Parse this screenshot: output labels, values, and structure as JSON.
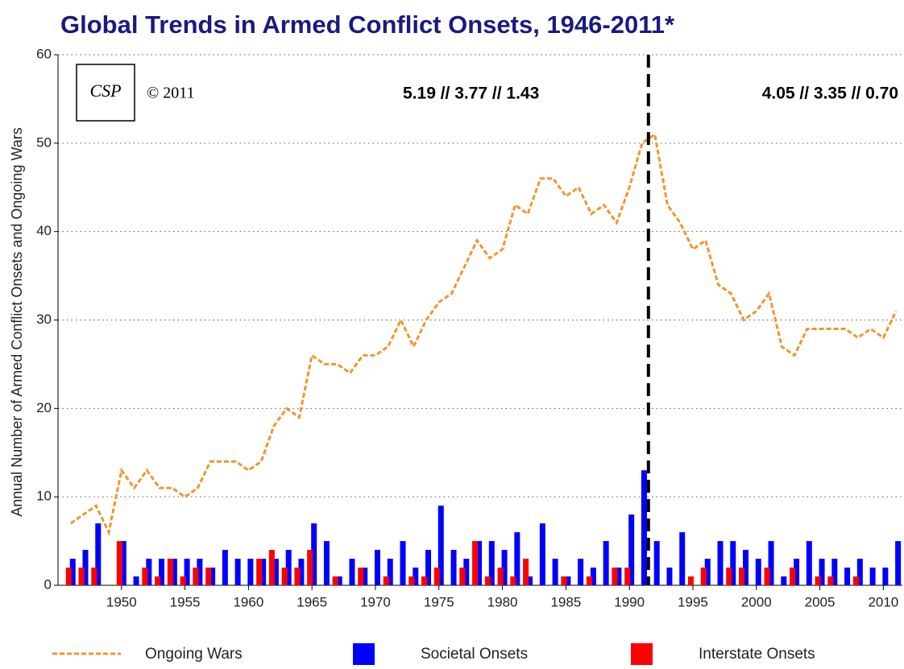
{
  "chart_data": {
    "type": "bar",
    "title": "Global Trends in Armed Conflict Onsets, 1946-2011*",
    "y_label": "Annual Number of Armed Conflict Onsets and Ongoing Wars",
    "logo": "CSP",
    "copyright": "© 2011",
    "annotations": [
      "5.19 // 3.77 // 1.43",
      "4.05 // 3.35 // 0.70"
    ],
    "reference_line": {
      "x": 1991.5
    },
    "x": [
      1946,
      1947,
      1948,
      1949,
      1950,
      1951,
      1952,
      1953,
      1954,
      1955,
      1956,
      1957,
      1958,
      1959,
      1960,
      1961,
      1962,
      1963,
      1964,
      1965,
      1966,
      1967,
      1968,
      1969,
      1970,
      1971,
      1972,
      1973,
      1974,
      1975,
      1976,
      1977,
      1978,
      1979,
      1980,
      1981,
      1982,
      1983,
      1984,
      1985,
      1986,
      1987,
      1988,
      1989,
      1990,
      1991,
      1992,
      1993,
      1994,
      1995,
      1996,
      1997,
      1998,
      1999,
      2000,
      2001,
      2002,
      2003,
      2004,
      2005,
      2006,
      2007,
      2008,
      2009,
      2010,
      2011
    ],
    "series": [
      {
        "name": "Ongoing Wars",
        "type": "line",
        "color": "#f0962d",
        "values": [
          7,
          8,
          9,
          6,
          13,
          11,
          13,
          11,
          11,
          10,
          11,
          14,
          14,
          14,
          13,
          14,
          18,
          20,
          19,
          26,
          25,
          25,
          24,
          26,
          26,
          27,
          30,
          27,
          30,
          32,
          33,
          36,
          39,
          37,
          38,
          43,
          42,
          46,
          46,
          44,
          45,
          42,
          43,
          41,
          45,
          50,
          51,
          43,
          41,
          38,
          39,
          34,
          33,
          30,
          31,
          33,
          27,
          26,
          29,
          29,
          29,
          29,
          28,
          29,
          28,
          31
        ]
      },
      {
        "name": "Societal Onsets",
        "type": "bar",
        "color": "#0000ff",
        "values": [
          3,
          4,
          7,
          0,
          5,
          1,
          3,
          3,
          3,
          3,
          3,
          2,
          4,
          3,
          3,
          3,
          3,
          4,
          3,
          7,
          5,
          1,
          3,
          2,
          4,
          3,
          5,
          2,
          4,
          9,
          4,
          3,
          5,
          5,
          4,
          6,
          1,
          7,
          3,
          1,
          3,
          2,
          5,
          2,
          8,
          13,
          5,
          2,
          6,
          0,
          3,
          5,
          5,
          4,
          3,
          5,
          1,
          3,
          5,
          3,
          3,
          2,
          3,
          2,
          2,
          5
        ]
      },
      {
        "name": "Interstate Onsets",
        "type": "bar",
        "color": "#ff0000",
        "values": [
          2,
          2,
          2,
          0,
          5,
          0,
          2,
          1,
          3,
          1,
          2,
          2,
          0,
          0,
          0,
          3,
          4,
          2,
          2,
          4,
          0,
          1,
          0,
          2,
          0,
          1,
          0,
          1,
          1,
          2,
          0,
          2,
          5,
          1,
          2,
          1,
          3,
          0,
          0,
          1,
          0,
          1,
          0,
          2,
          2,
          0,
          0,
          0,
          0,
          1,
          2,
          0,
          2,
          2,
          0,
          2,
          0,
          2,
          0,
          1,
          1,
          0,
          1,
          0,
          0,
          0
        ]
      }
    ],
    "xlim": [
      1945,
      2011.5
    ],
    "xticks": [
      1950,
      1955,
      1960,
      1965,
      1970,
      1975,
      1980,
      1985,
      1990,
      1995,
      2000,
      2005,
      2010
    ],
    "ylim": [
      0,
      60
    ],
    "yticks": [
      0,
      10,
      20,
      30,
      40,
      50,
      60
    ],
    "grid": true
  }
}
